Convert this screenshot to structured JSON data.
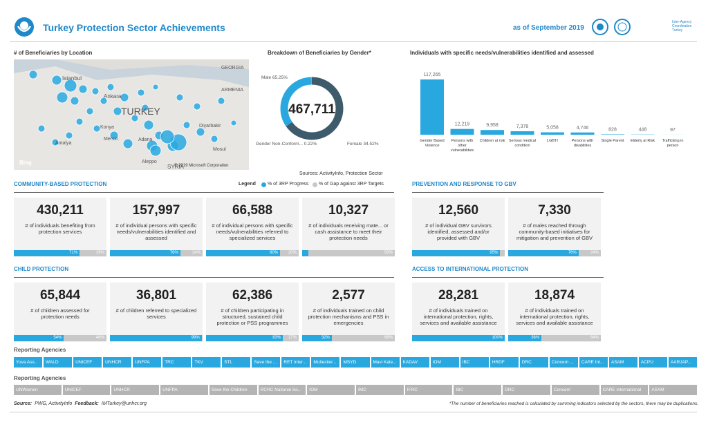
{
  "header": {
    "title": "Turkey Protection Sector Achievements",
    "date": "as of September 2019",
    "agency": "Inter-Agency Coordination Turkey"
  },
  "map": {
    "title": "# of Beneficiaries by Location",
    "labels": [
      "GEORGIA",
      "ARMENIA",
      "Istanbul",
      "Ankara",
      "TURKEY",
      "Konya",
      "Antalya",
      "Mersin",
      "Adana",
      "Diyarbakir",
      "Mosul",
      "Aleppo",
      "SYRIA"
    ],
    "credit": "© 2019 Microsoft Corporation",
    "provider": "Bing"
  },
  "gender": {
    "title": "Breakdown of Beneficiaries by Gender*",
    "total": "467,711",
    "segments": [
      {
        "label": "Male 65.25%",
        "value": 65.25,
        "color": "#3e5b6c"
      },
      {
        "label": "Female 34.52%",
        "value": 34.52,
        "color": "#29a8e0"
      },
      {
        "label": "Gender Non-Conform... 0.22%",
        "value": 0.22,
        "color": "#b8c4cc"
      }
    ]
  },
  "needs": {
    "title": "Individuals with specific needs/vulnerabilities identified and assessed",
    "categories": [
      "Gender Based Violence",
      "Persons with other vulnerabilities",
      "Children at risk",
      "Serious medical condition",
      "LGBTI",
      "Persons with disabilities",
      "Single Parent",
      "Elderly at Risk",
      "Trafficking in person"
    ],
    "values": [
      117265,
      12219,
      9958,
      7378,
      5058,
      4746,
      828,
      448,
      97
    ],
    "value_labels": [
      "117,265",
      "12,219",
      "9,958",
      "7,378",
      "5,058",
      "4,746",
      "828",
      "448",
      "97"
    ],
    "color": "#29a8e0"
  },
  "sources": "Sources: ActivityInfo, Protection Sector",
  "legend": {
    "title": "Legend",
    "progress": "% of 3RP Progress",
    "gap": "% of Gap against 3RP Targets",
    "progress_color": "#29a8e0",
    "gap_color": "#c8c8c8"
  },
  "sections": [
    {
      "title": "COMMUNITY-BASED PROTECTION",
      "cards": [
        {
          "value": "430,211",
          "text": "# of individuals benefiting from protection services",
          "progress": 71,
          "progress_label": "71%",
          "gap": 29,
          "gap_label": "29%"
        },
        {
          "value": "157,997",
          "text": "# of individual persons with specific needs/vulnerabilities identified and assessed",
          "progress": 76,
          "progress_label": "76%",
          "gap": 24,
          "gap_label": "24%"
        },
        {
          "value": "66,588",
          "text": "# of individual persons with specific needs/vulnerabilities referred to specialized services",
          "progress": 80,
          "progress_label": "80%",
          "gap": 20,
          "gap_label": "20%"
        },
        {
          "value": "10,327",
          "text": "# of individuals receiving mate... or cash assistance to meet their protection needs",
          "progress": 7,
          "gap": 93,
          "gap_label": "93%"
        }
      ]
    },
    {
      "title": "PREVENTION AND RESPONSE TO GBV",
      "cards": [
        {
          "value": "12,560",
          "text": "# of individual GBV survivors identified, assessed and/or provided with GBV",
          "progress": 95,
          "progress_label": "95%",
          "gap": 5
        },
        {
          "value": "7,330",
          "text": "# of males reached through community-based initiatives for mitigation and prevention of GBV",
          "progress": 76,
          "progress_label": "76%",
          "gap": 24,
          "gap_label": "24%"
        }
      ]
    },
    {
      "title": "CHILD PROTECTION",
      "cards": [
        {
          "value": "65,844",
          "text": "# of children assessed for protection needs",
          "progress": 54,
          "progress_label": "54%",
          "gap": 46,
          "gap_label": "46%"
        },
        {
          "value": "36,801",
          "text": "# of children referred to specialized services",
          "progress": 99,
          "progress_label": "99%",
          "gap": 1
        },
        {
          "value": "62,386",
          "text": "# of children participating in structured, sustained child protection or PSS programmes",
          "progress": 83,
          "progress_label": "83%",
          "gap": 17,
          "gap_label": "17%"
        },
        {
          "value": "2,577",
          "text": "# of individuals trained on child protection mechanisms and PSS in emergencies",
          "progress": 32,
          "progress_label": "32%",
          "gap": 68,
          "gap_label": "68%"
        }
      ]
    },
    {
      "title": "ACCESS TO INTERNATIONAL PROTECTION",
      "cards": [
        {
          "value": "28,281",
          "text": "# of individuals trained on international protection, rights, services and available assistance",
          "progress": 100,
          "progress_label": "100%"
        },
        {
          "value": "18,874",
          "text": "# of individuals trained on international protection, rights, services and available assistance",
          "progress": 36,
          "progress_label": "36%",
          "gap": 64,
          "gap_label": "64%"
        }
      ]
    }
  ],
  "agencies": [
    {
      "title": "Reporting Agencies",
      "color": "#29a8e0",
      "items": [
        "Yuva Ass..",
        "WALD",
        "UNICEF",
        "UNHCR",
        "UNFPA",
        "TRC",
        "TKV",
        "STL",
        "Save the ...",
        "RET Inter...",
        "Multeciler...",
        "MSYD",
        "Mavi Kale...",
        "KADAV",
        "IOM",
        "IBC",
        "HRDF",
        "DRC",
        "Concern ...",
        "CARE Int...",
        "ASAM",
        "ACPU",
        "AARJAP..."
      ]
    },
    {
      "title": "Reporting Agencies",
      "color": "#b4b4b4",
      "items": [
        "UNWomen",
        "UNICEF",
        "UNHCR",
        "UNFPA",
        "Save the Children",
        "RCRC National So...",
        "IOM",
        "IMC",
        "IFRC",
        "IBC",
        "DRC",
        "Concern",
        "CARE International",
        "ASAM"
      ]
    }
  ],
  "footer": {
    "source_label": "Source:",
    "source": "PWG, ActivityInfo",
    "feedback_label": "Feedback:",
    "feedback": "IMTurkey@unhcr.org",
    "note": "*The number of beneficiaries reached is calculated by summing indicators selected by the sectors, there may be duplications."
  }
}
